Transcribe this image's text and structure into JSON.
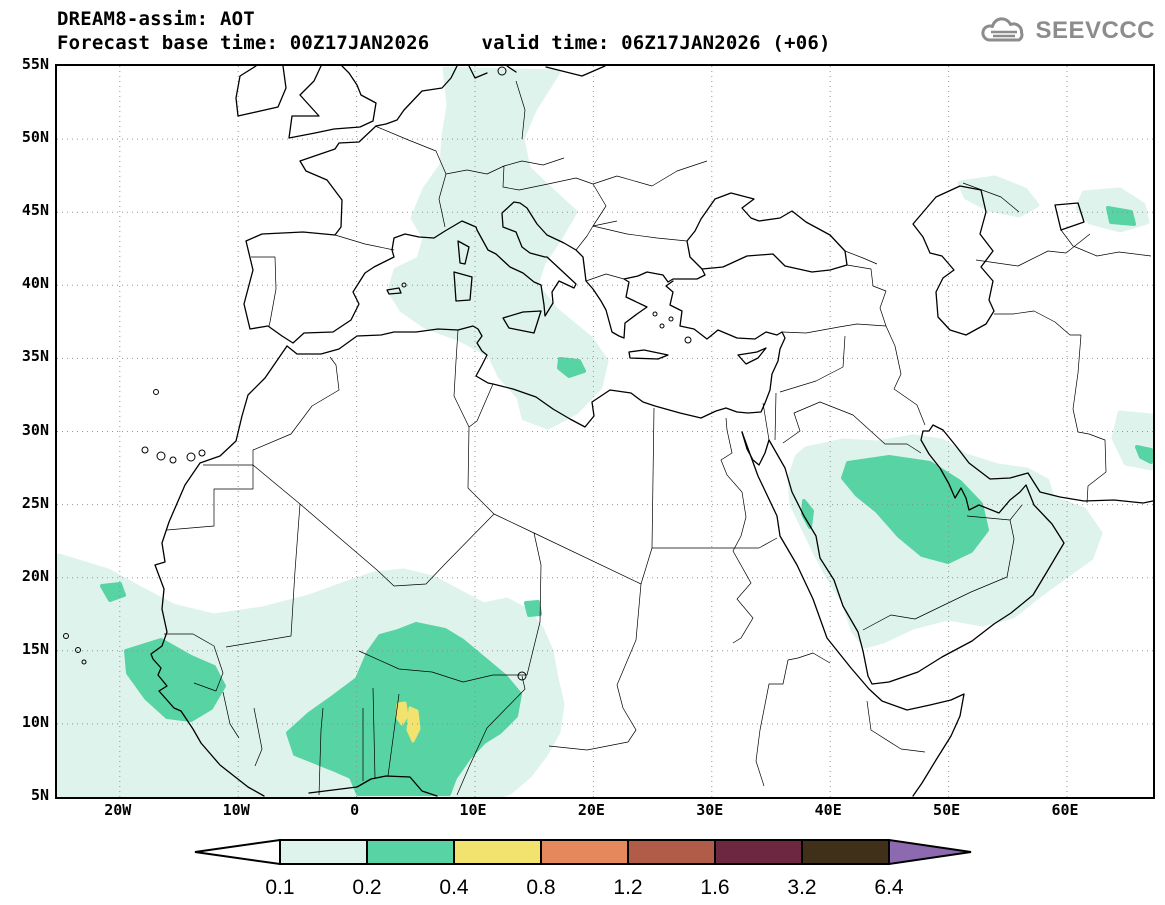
{
  "header": {
    "title": "DREAM8-assim: AOT",
    "base_time": "Forecast base time: 00Z17JAN2026",
    "valid_time": "valid time: 06Z17JAN2026 (+06)",
    "logo_text": "SEEVCCC"
  },
  "map": {
    "lat_ticks": [
      "55N",
      "50N",
      "45N",
      "40N",
      "35N",
      "30N",
      "25N",
      "20N",
      "15N",
      "10N",
      "5N"
    ],
    "lon_ticks": [
      "20W",
      "10W",
      "0",
      "10E",
      "20E",
      "30E",
      "40E",
      "50E",
      "60E"
    ]
  },
  "colorbar": {
    "labels": [
      "0.1",
      "0.2",
      "0.4",
      "0.8",
      "1.2",
      "1.6",
      "3.2",
      "6.4"
    ],
    "segment_colors": [
      "#dff3ed",
      "#57d3a4",
      "#f2e26e",
      "#e5885c",
      "#b05c48",
      "#6e2741",
      "#403019"
    ],
    "left_arrow_color": "#ffffff",
    "right_arrow_color": "#8d6ab0"
  },
  "palette": {
    "aot_01": "#dff3ed",
    "aot_02": "#57d3a4",
    "aot_04": "#f2e26e",
    "grid_color": "#8a8a8a",
    "coast_color": "#000000",
    "logo_gray": "#8c8c8c"
  },
  "aot_regions": [
    {
      "level": "0.1-0.2",
      "areas": [
        "Band from northern Germany across the Alps, Italy and central Mediterranean to the Libyan coast",
        "West Africa, Sahel and Gulf of Guinea with adjacent Atlantic",
        "Central Arabian Peninsula extending to Persian Gulf and Gulf of Oman",
        "Northwest of Caspian Sea",
        "Northeast of Caspian / Aral region",
        "Southeast Iran near right map edge (~28N)"
      ]
    },
    {
      "level": "0.2-0.4",
      "areas": [
        "Senegal / Guinea coast region",
        "Small spot offshore Mauritania (~20W,19N)",
        "Large area over Ghana, Togo, Benin, Niger and Nigeria",
        "Spot in Ionian Sea southeast of Sicily (~18E,34N)",
        "Central Saudi Arabia core",
        "Small spots near 65E,44.5N and 67E,28N",
        "Thin sliver on Saudi Red Sea coast (~38E,24N)"
      ]
    },
    {
      "level": "0.4-0.8",
      "areas": [
        "Two small cells over southwest Niger / northern Nigeria (~4-5E, 9-11N)"
      ]
    }
  ]
}
